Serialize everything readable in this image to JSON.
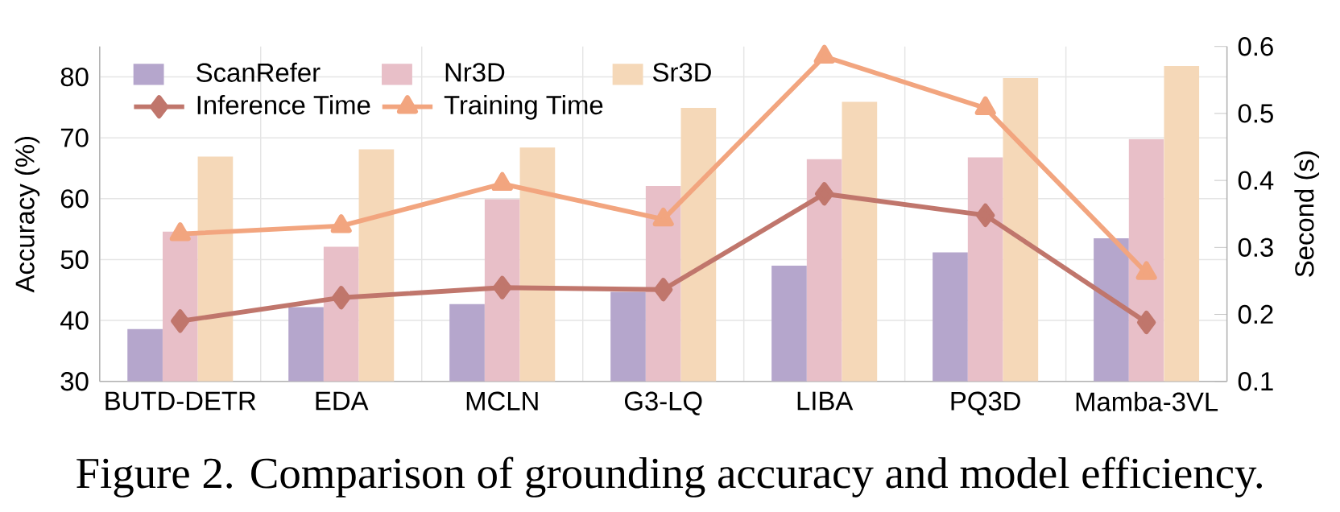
{
  "chart_data": {
    "type": "bar",
    "categories": [
      "BUTD-DETR",
      "EDA",
      "MCLN",
      "G3-LQ",
      "LIBA",
      "PQ3D",
      "Mamba-3VL"
    ],
    "series": [
      {
        "name": "ScanRefer",
        "color": "#b5a6cc",
        "values": [
          38.6,
          42.2,
          42.7,
          44.7,
          49.0,
          51.2,
          53.5
        ]
      },
      {
        "name": "Nr3D",
        "color": "#e8bfc8",
        "values": [
          54.6,
          52.1,
          59.9,
          62.1,
          66.5,
          66.8,
          69.8
        ]
      },
      {
        "name": "Sr3D",
        "color": "#f5d8b8",
        "values": [
          66.9,
          68.1,
          68.4,
          74.9,
          75.9,
          79.8,
          81.8
        ]
      },
      {
        "name": "Inference Time",
        "type": "line",
        "axis": "y2",
        "marker": "diamond",
        "color": "#c0766c",
        "values": [
          0.19,
          0.225,
          0.24,
          0.237,
          0.38,
          0.348,
          0.188
        ]
      },
      {
        "name": "Training Time",
        "type": "line",
        "axis": "y2",
        "marker": "triangle",
        "color": "#f2a57f",
        "values": [
          0.32,
          0.332,
          0.395,
          0.342,
          0.585,
          0.508,
          0.262
        ]
      }
    ],
    "ylabel": "Accuracy (%)",
    "y2label": "Second (s)",
    "ylim": [
      30,
      85
    ],
    "yticks": [
      30,
      40,
      50,
      60,
      70,
      80
    ],
    "y2lim": [
      0.1,
      0.6
    ],
    "y2ticks": [
      0.1,
      0.2,
      0.3,
      0.4,
      0.5,
      0.6
    ],
    "grid": true,
    "legend": "top left",
    "annotations": [
      "Figure 2. Comparison of grounding accuracy and model efficiency."
    ]
  }
}
